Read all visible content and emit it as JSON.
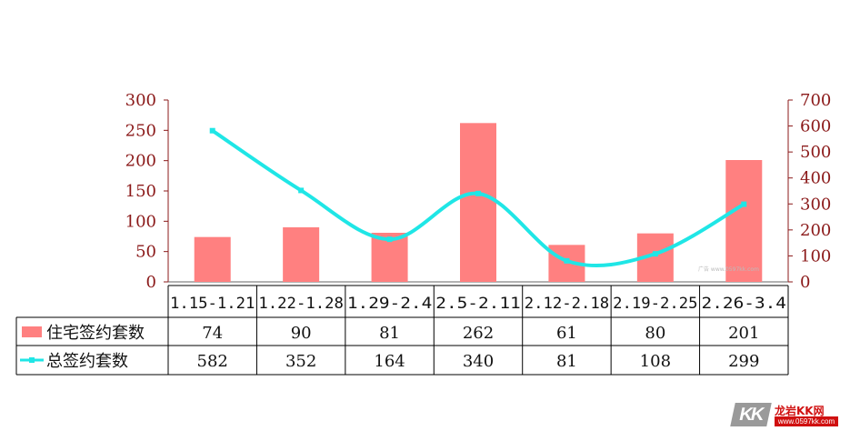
{
  "chart_data": {
    "type": "bar",
    "categories": [
      "1.15-1.21",
      "1.22-1.28",
      "1.29-2.4",
      "2.5-2.11",
      "2.12-2.18",
      "2.19-2.25",
      "2.26-3.4"
    ],
    "series": [
      {
        "name": "住宅签约套数",
        "type": "bar",
        "axis": "left",
        "color": "#ff8080",
        "values": [
          74,
          90,
          81,
          262,
          61,
          80,
          201
        ]
      },
      {
        "name": "总签约套数",
        "type": "line",
        "axis": "right",
        "color": "#1fe6e6",
        "values": [
          582,
          352,
          164,
          340,
          81,
          108,
          299
        ]
      }
    ],
    "ylim_left": [
      0,
      300
    ],
    "yticks_left": [
      0,
      50,
      100,
      150,
      200,
      250,
      300
    ],
    "ylim_right": [
      0,
      700
    ],
    "yticks_right": [
      0,
      100,
      200,
      300,
      400,
      500,
      600,
      700
    ],
    "data_table": true,
    "grid": false
  },
  "watermark": {
    "text": "广告 www.0597kk.com"
  },
  "logo": {
    "mark": "KK",
    "brand": "龙岩KK网",
    "url": "www.0597kk.com"
  }
}
